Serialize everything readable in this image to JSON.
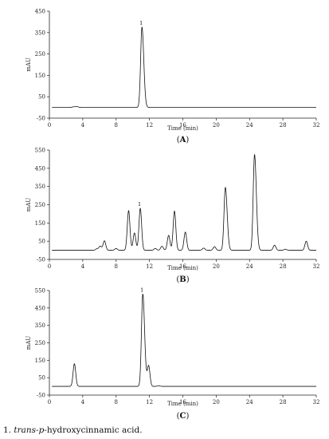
{
  "figure": {
    "footnote": {
      "number": "1.",
      "italic_part": "trans-p",
      "rest": "-hydroxycinnamic acid."
    }
  },
  "chart_data": [
    {
      "type": "line",
      "panel_label": "(A)",
      "panel_letter": "A",
      "xlabel": "Time (min)",
      "ylabel": "mAU",
      "xlim": [
        0,
        32
      ],
      "ylim": [
        -50,
        450
      ],
      "xticks": [
        0,
        4,
        8,
        12,
        16,
        20,
        24,
        28,
        32
      ],
      "yticks": [
        -50,
        50,
        150,
        250,
        350,
        450
      ],
      "baseline": 0,
      "peaks": [
        {
          "x": 2.9,
          "y": 3,
          "label": ""
        },
        {
          "x": 3.3,
          "y": 4,
          "label": ""
        },
        {
          "x": 11.1,
          "y": 375,
          "label": "1"
        }
      ]
    },
    {
      "type": "line",
      "panel_label": "(B)",
      "panel_letter": "B",
      "xlabel": "Time (min)",
      "ylabel": "mAU",
      "xlim": [
        0,
        32
      ],
      "ylim": [
        -50,
        550
      ],
      "xticks": [
        0,
        4,
        8,
        12,
        16,
        20,
        24,
        28,
        32
      ],
      "yticks": [
        -50,
        50,
        150,
        250,
        350,
        450,
        550
      ],
      "baseline": 0,
      "peaks": [
        {
          "x": 5.7,
          "y": 8,
          "label": ""
        },
        {
          "x": 6.1,
          "y": 22,
          "label": ""
        },
        {
          "x": 6.6,
          "y": 52,
          "label": ""
        },
        {
          "x": 8.0,
          "y": 10,
          "label": ""
        },
        {
          "x": 9.5,
          "y": 218,
          "label": ""
        },
        {
          "x": 10.2,
          "y": 95,
          "label": ""
        },
        {
          "x": 10.9,
          "y": 230,
          "label": "1"
        },
        {
          "x": 12.7,
          "y": 10,
          "label": ""
        },
        {
          "x": 13.5,
          "y": 22,
          "label": ""
        },
        {
          "x": 14.3,
          "y": 82,
          "label": ""
        },
        {
          "x": 15.0,
          "y": 215,
          "label": ""
        },
        {
          "x": 16.3,
          "y": 100,
          "label": ""
        },
        {
          "x": 18.5,
          "y": 12,
          "label": ""
        },
        {
          "x": 19.8,
          "y": 20,
          "label": ""
        },
        {
          "x": 21.1,
          "y": 345,
          "label": ""
        },
        {
          "x": 24.6,
          "y": 525,
          "label": ""
        },
        {
          "x": 27.0,
          "y": 28,
          "label": ""
        },
        {
          "x": 28.3,
          "y": 6,
          "label": ""
        },
        {
          "x": 30.8,
          "y": 50,
          "label": ""
        }
      ]
    },
    {
      "type": "line",
      "panel_label": "(C)",
      "panel_letter": "C",
      "xlabel": "Time (min)",
      "ylabel": "mAU",
      "xlim": [
        0,
        32
      ],
      "ylim": [
        -50,
        550
      ],
      "xticks": [
        0,
        4,
        8,
        12,
        16,
        20,
        24,
        28,
        32
      ],
      "yticks": [
        -50,
        50,
        150,
        250,
        350,
        450,
        550
      ],
      "baseline": 0,
      "peaks": [
        {
          "x": 3.0,
          "y": 130,
          "label": ""
        },
        {
          "x": 11.2,
          "y": 530,
          "label": "1"
        },
        {
          "x": 11.9,
          "y": 118,
          "label": ""
        },
        {
          "x": 13.1,
          "y": 4,
          "label": ""
        }
      ]
    }
  ]
}
